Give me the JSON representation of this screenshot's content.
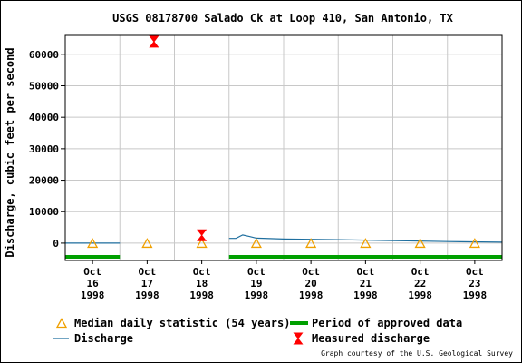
{
  "chart_data": {
    "type": "line",
    "title": "USGS 08178700 Salado Ck at Loop 410, San Antonio, TX",
    "ylabel": "Discharge, cubic feet per second",
    "xlabel": "",
    "ylim": [
      -5500,
      66000
    ],
    "xlim": [
      "1998-10-16",
      "1998-10-24"
    ],
    "y_ticks": [
      0,
      10000,
      20000,
      30000,
      40000,
      50000,
      60000
    ],
    "x_ticks": [
      {
        "date": "1998-10-16",
        "line1": "Oct",
        "line2": "16",
        "line3": "1998"
      },
      {
        "date": "1998-10-17",
        "line1": "Oct",
        "line2": "17",
        "line3": "1998"
      },
      {
        "date": "1998-10-18",
        "line1": "Oct",
        "line2": "18",
        "line3": "1998"
      },
      {
        "date": "1998-10-19",
        "line1": "Oct",
        "line2": "19",
        "line3": "1998"
      },
      {
        "date": "1998-10-20",
        "line1": "Oct",
        "line2": "20",
        "line3": "1998"
      },
      {
        "date": "1998-10-21",
        "line1": "Oct",
        "line2": "21",
        "line3": "1998"
      },
      {
        "date": "1998-10-22",
        "line1": "Oct",
        "line2": "22",
        "line3": "1998"
      },
      {
        "date": "1998-10-23",
        "line1": "Oct",
        "line2": "23",
        "line3": "1998"
      }
    ],
    "grid": true,
    "legend_position": "bottom",
    "series": [
      {
        "name": "Discharge",
        "kind": "line",
        "color": "#1f6f9f",
        "segments": [
          [
            {
              "x": "1998-10-16T00:00",
              "y": 20
            },
            {
              "x": "1998-10-17T00:00",
              "y": 20
            }
          ],
          [
            {
              "x": "1998-10-19T00:00",
              "y": 1500
            },
            {
              "x": "1998-10-19T03:00",
              "y": 1500
            },
            {
              "x": "1998-10-19T06:00",
              "y": 2600
            },
            {
              "x": "1998-10-19T09:00",
              "y": 2100
            },
            {
              "x": "1998-10-19T12:00",
              "y": 1600
            },
            {
              "x": "1998-10-20T00:00",
              "y": 1300
            },
            {
              "x": "1998-10-21T00:00",
              "y": 1100
            },
            {
              "x": "1998-10-22T00:00",
              "y": 800
            },
            {
              "x": "1998-10-23T00:00",
              "y": 500
            },
            {
              "x": "1998-10-24T00:00",
              "y": 300
            }
          ]
        ]
      },
      {
        "name": "Median daily statistic (54 years)",
        "kind": "marker-triangle",
        "color": "#f0a000",
        "points": [
          {
            "x": "1998-10-16T12:00",
            "y": 0
          },
          {
            "x": "1998-10-17T12:00",
            "y": 0
          },
          {
            "x": "1998-10-18T12:00",
            "y": 0
          },
          {
            "x": "1998-10-19T12:00",
            "y": 0
          },
          {
            "x": "1998-10-20T12:00",
            "y": 0
          },
          {
            "x": "1998-10-21T12:00",
            "y": 0
          },
          {
            "x": "1998-10-22T12:00",
            "y": 0
          },
          {
            "x": "1998-10-23T12:00",
            "y": 0
          }
        ]
      },
      {
        "name": "Measured discharge",
        "kind": "marker-bowtie",
        "color": "#ff0000",
        "points": [
          {
            "x": "1998-10-17T15:00",
            "y": 64000
          },
          {
            "x": "1998-10-18T12:00",
            "y": 2500
          }
        ]
      },
      {
        "name": "Period of approved data",
        "kind": "period-bar",
        "color": "#00a000",
        "ranges": [
          {
            "start": "1998-10-16T00:00",
            "end": "1998-10-17T00:00"
          },
          {
            "start": "1998-10-19T00:00",
            "end": "1998-10-24T00:00"
          }
        ]
      }
    ],
    "legend": [
      {
        "label": "Median daily statistic (54 years)",
        "symbol": "triangle",
        "color": "#f0a000"
      },
      {
        "label": "Period of approved data",
        "symbol": "thick-line",
        "color": "#00a000"
      },
      {
        "label": "Discharge",
        "symbol": "line",
        "color": "#1f6f9f"
      },
      {
        "label": "Measured discharge",
        "symbol": "bowtie",
        "color": "#ff0000"
      }
    ],
    "credit": "Graph courtesy of the U.S. Geological Survey"
  }
}
